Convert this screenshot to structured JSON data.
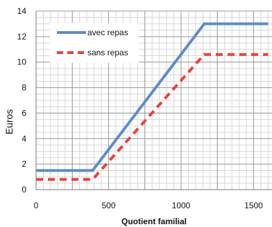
{
  "chart_data": {
    "type": "line",
    "title": "",
    "xlabel": "Quotient familial",
    "ylabel": "Euros",
    "xlim": [
      0,
      1600
    ],
    "ylim": [
      0,
      14
    ],
    "x_ticks": [
      "0",
      "500",
      "1000",
      "1500"
    ],
    "y_ticks": [
      "0",
      "2",
      "4",
      "6",
      "8",
      "10",
      "12",
      "14"
    ],
    "grid": true,
    "legend_position": "top-left",
    "series": [
      {
        "name": "avec repas",
        "color": "#5B8DC9",
        "dash": "solid",
        "points": [
          [
            0,
            1.5
          ],
          [
            390,
            1.5
          ],
          [
            1160,
            13.0
          ],
          [
            1600,
            13.0
          ]
        ]
      },
      {
        "name": "sans repas",
        "color": "#E8423A",
        "dash": "dashed",
        "points": [
          [
            0,
            0.8
          ],
          [
            390,
            0.8
          ],
          [
            1160,
            10.6
          ],
          [
            1600,
            10.6
          ]
        ]
      }
    ]
  }
}
